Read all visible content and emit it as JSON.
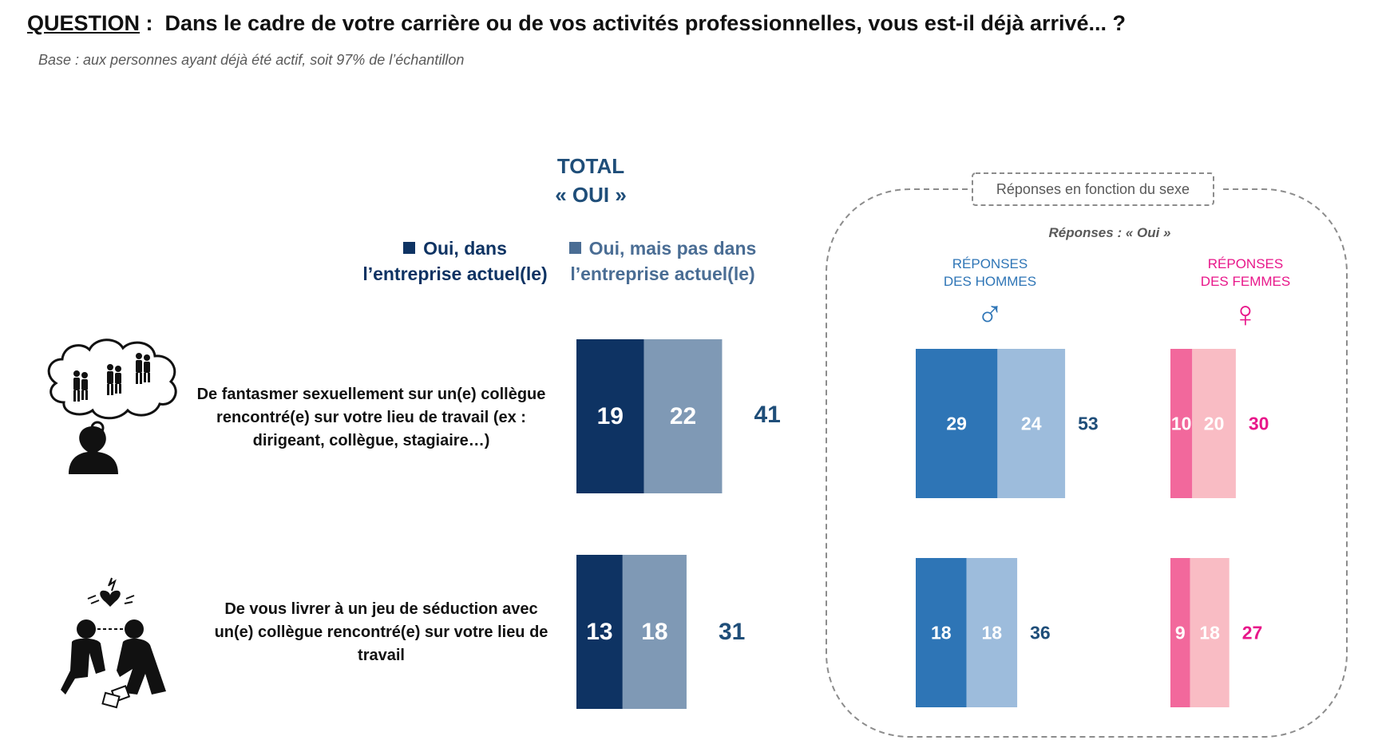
{
  "question": {
    "lead": "QUESTION",
    "sep": " :  ",
    "text": "Dans le cadre de votre carrière ou de vos activités professionnelles, vous est-il déjà arrivé... ?",
    "base": "Base : aux personnes ayant déjà été actif, soit 97% de l’échantillon"
  },
  "total_header": {
    "line1": "TOTAL",
    "line2": "« OUI »"
  },
  "legend": {
    "current": {
      "line1": "Oui, dans",
      "line2": "l’entreprise actuel(le)",
      "color": "#0e3363"
    },
    "other": {
      "line1": "Oui, mais pas dans",
      "line2": "l’entreprise actuel(le)",
      "color": "#4a6d94"
    }
  },
  "rows": [
    {
      "lines": [
        "De fantasmer sexuellement sur un(e) collègue",
        "rencontré(e) sur votre lieu de travail (ex :",
        "dirigeant, collègue, stagiaire…)"
      ],
      "icon": "thought-bubble-couples-icon"
    },
    {
      "lines": [
        "De vous livrer à un jeu de séduction avec",
        "un(e) collègue rencontré(e) sur votre lieu de",
        "travail"
      ],
      "icon": "flirting-couple-icon"
    }
  ],
  "panel": {
    "title": "Réponses en fonction du sexe",
    "subtitle": "Réponses : « Oui »",
    "men": {
      "line1": "RÉPONSES",
      "line2": "DES HOMMES",
      "symbol": "♂"
    },
    "women": {
      "line1": "RÉPONSES",
      "line2": "DES FEMMES",
      "symbol": "♀"
    }
  },
  "chart_data": [
    {
      "type": "bar",
      "stacked": true,
      "orientation": "horizontal",
      "group": "total",
      "categories": [
        "De fantasmer sexuellement sur un(e) collègue rencontré(e) sur votre lieu de travail (ex : dirigeant, collègue, stagiaire…)",
        "De vous livrer à un jeu de séduction avec un(e) collègue rencontré(e) sur votre lieu de travail"
      ],
      "series": [
        {
          "name": "Oui, dans l’entreprise actuel(le)",
          "values": [
            19,
            13
          ],
          "color": "#0e3363"
        },
        {
          "name": "Oui, mais pas dans l’entreprise actuel(le)",
          "values": [
            22,
            18
          ],
          "color": "#7f99b5"
        }
      ],
      "totals": [
        41,
        31
      ],
      "total_color": "#1f4e79"
    },
    {
      "type": "bar",
      "stacked": true,
      "orientation": "horizontal",
      "group": "men",
      "categories": [
        "De fantasmer sexuellement sur un(e) collègue rencontré(e) sur votre lieu de travail (ex : dirigeant, collègue, stagiaire…)",
        "De vous livrer à un jeu de séduction avec un(e) collègue rencontré(e) sur votre lieu de travail"
      ],
      "series": [
        {
          "name": "Oui, dans l’entreprise actuel(le)",
          "values": [
            29,
            18
          ],
          "color": "#2e75b6"
        },
        {
          "name": "Oui, mais pas dans l’entreprise actuel(le)",
          "values": [
            24,
            18
          ],
          "color": "#9dbcdc"
        }
      ],
      "totals": [
        53,
        36
      ],
      "total_color": "#1f4e79"
    },
    {
      "type": "bar",
      "stacked": true,
      "orientation": "horizontal",
      "group": "women",
      "categories": [
        "De fantasmer sexuellement sur un(e) collègue rencontré(e) sur votre lieu de travail (ex : dirigeant, collègue, stagiaire…)",
        "De vous livrer à un jeu de séduction avec un(e) collègue rencontré(e) sur votre lieu de travail"
      ],
      "series": [
        {
          "name": "Oui, dans l’entreprise actuel(le)",
          "values": [
            10,
            9
          ],
          "color": "#f2689c"
        },
        {
          "name": "Oui, mais pas dans l’entreprise actuel(le)",
          "values": [
            20,
            18
          ],
          "color": "#f9bcc4"
        }
      ],
      "totals": [
        30,
        27
      ],
      "total_color": "#e8178a"
    }
  ]
}
